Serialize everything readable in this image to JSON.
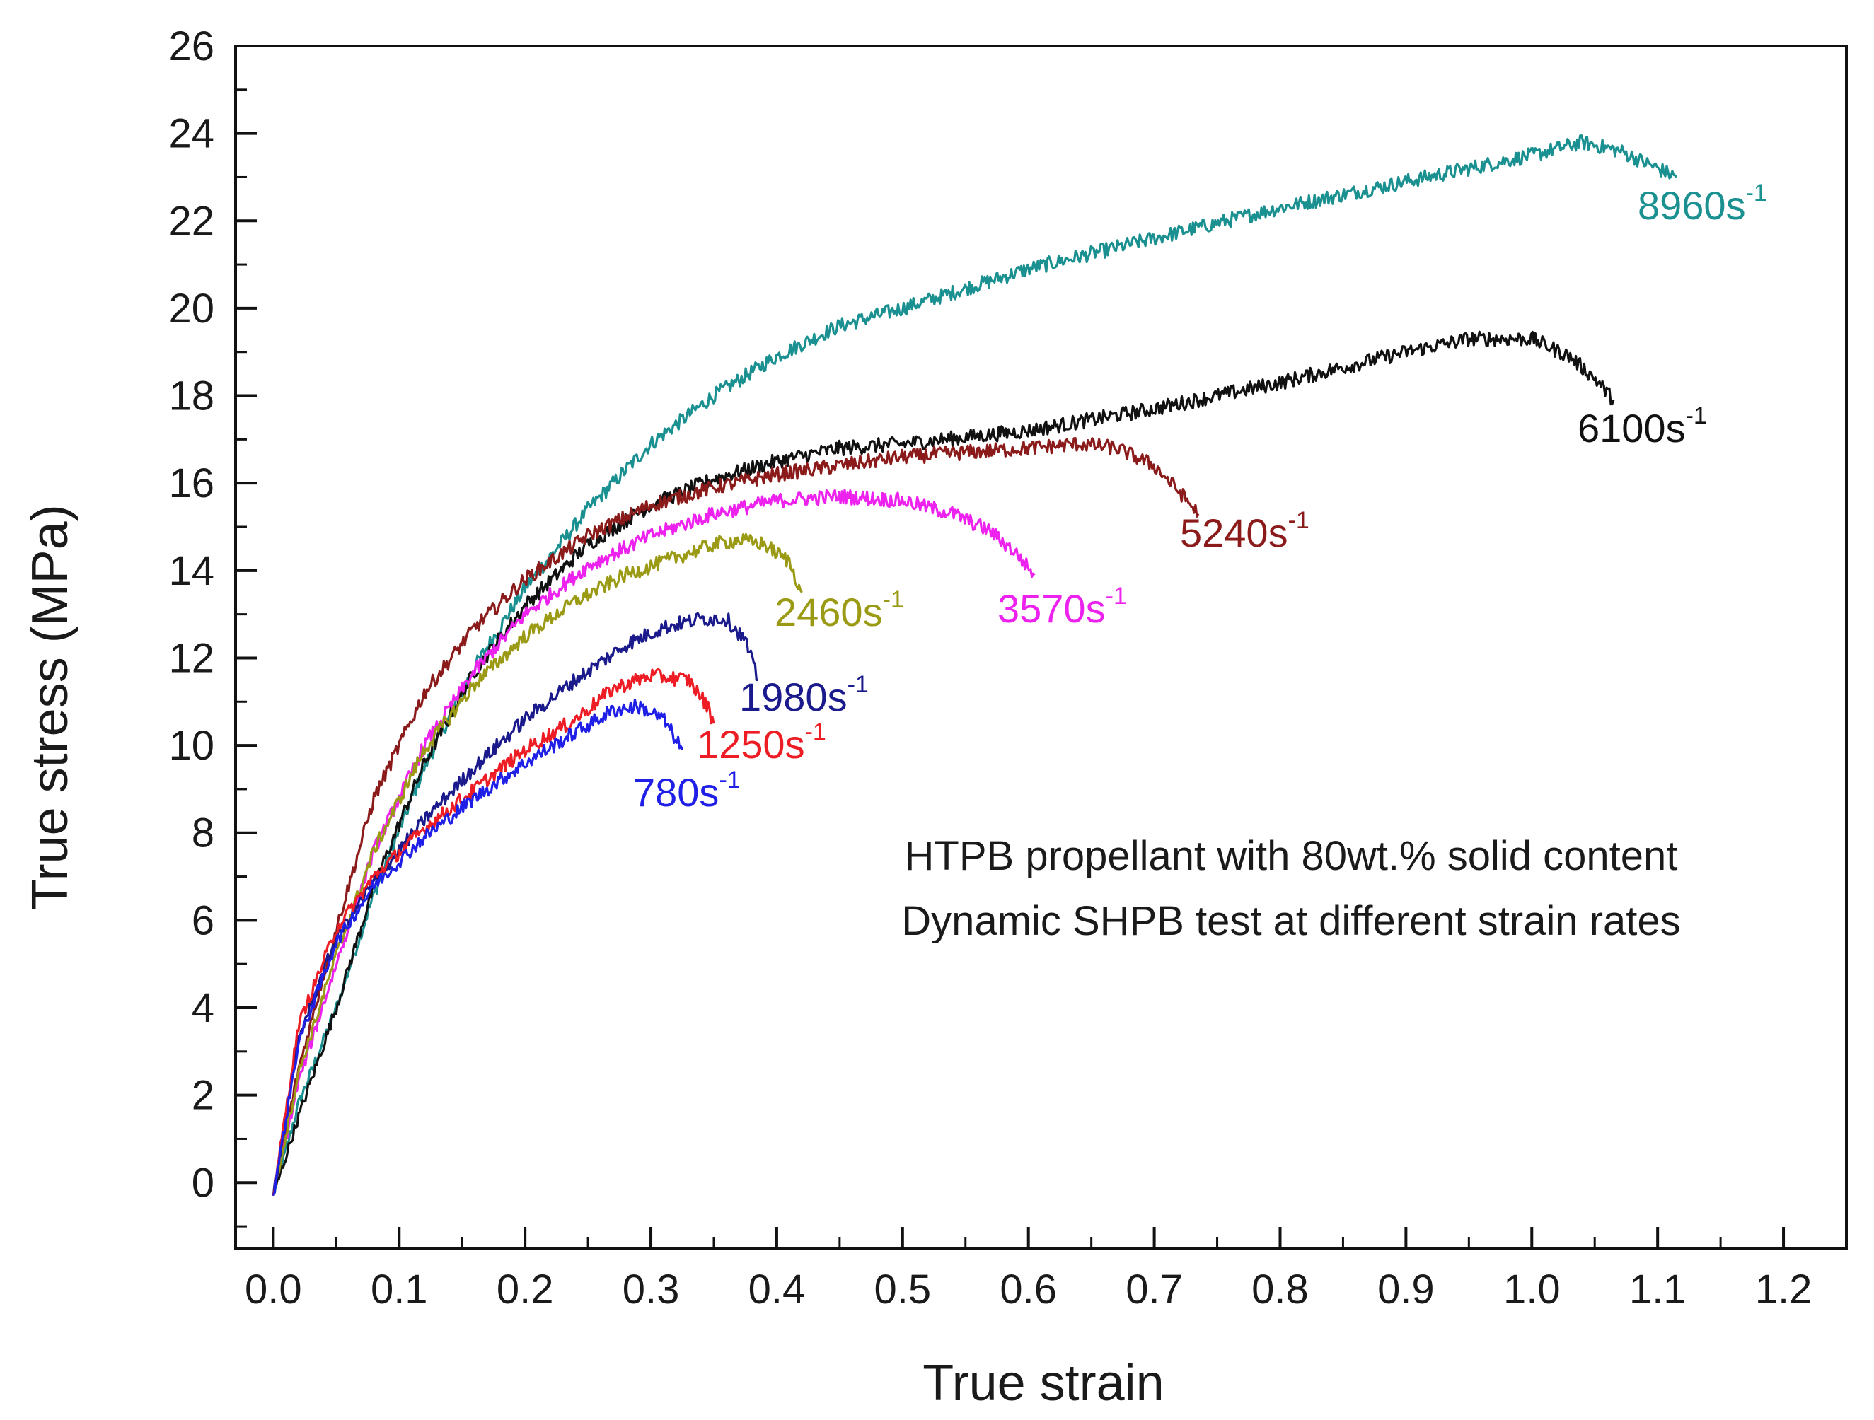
{
  "chart_data": {
    "type": "line",
    "title": "",
    "xlabel": "True strain",
    "ylabel": "True stress (MPa)",
    "xlim": [
      -0.03,
      1.25
    ],
    "ylim": [
      -1.5,
      26
    ],
    "x_ticks": [
      "0.0",
      "0.1",
      "0.2",
      "0.3",
      "0.4",
      "0.5",
      "0.6",
      "0.7",
      "0.8",
      "0.9",
      "1.0",
      "1.1",
      "1.2"
    ],
    "y_ticks": [
      "0",
      "2",
      "4",
      "6",
      "8",
      "10",
      "12",
      "14",
      "16",
      "18",
      "20",
      "22",
      "24",
      "26"
    ],
    "annotations": [
      "HTPB propellant with 80wt.% solid content",
      "Dynamic SHPB test at different strain rates"
    ],
    "series": [
      {
        "name": "780s-1",
        "rate": "780s",
        "sup": "-1",
        "color": "#1f1fe8",
        "x": [
          0.0,
          0.02,
          0.05,
          0.08,
          0.12,
          0.16,
          0.2,
          0.24,
          0.27,
          0.29,
          0.31,
          0.325
        ],
        "y": [
          -0.3,
          3.2,
          5.5,
          6.8,
          7.9,
          8.8,
          9.6,
          10.3,
          10.8,
          10.9,
          10.6,
          9.9
        ]
      },
      {
        "name": "1250s-1",
        "rate": "1250s",
        "sup": "-1",
        "color": "#ee1c24",
        "x": [
          0.0,
          0.02,
          0.05,
          0.08,
          0.12,
          0.16,
          0.2,
          0.24,
          0.27,
          0.3,
          0.33,
          0.345,
          0.35
        ],
        "y": [
          -0.3,
          3.6,
          5.8,
          7.0,
          8.1,
          9.0,
          9.9,
          10.6,
          11.3,
          11.6,
          11.5,
          10.9,
          10.5
        ]
      },
      {
        "name": "1980s-1",
        "rate": "1980s",
        "sup": "-1",
        "color": "#1a1a8c",
        "x": [
          0.0,
          0.02,
          0.05,
          0.08,
          0.12,
          0.16,
          0.2,
          0.24,
          0.28,
          0.31,
          0.34,
          0.36,
          0.375,
          0.385
        ],
        "y": [
          -0.3,
          3.3,
          5.6,
          6.9,
          8.3,
          9.5,
          10.6,
          11.5,
          12.3,
          12.7,
          12.9,
          12.9,
          12.4,
          11.5
        ]
      },
      {
        "name": "2460s-1",
        "rate": "2460s",
        "sup": "-1",
        "color": "#9a9a14",
        "x": [
          0.0,
          0.02,
          0.05,
          0.08,
          0.12,
          0.16,
          0.2,
          0.24,
          0.28,
          0.32,
          0.35,
          0.37,
          0.39,
          0.41,
          0.42
        ],
        "y": [
          -0.3,
          2.5,
          5.2,
          7.6,
          9.9,
          11.4,
          12.5,
          13.3,
          13.9,
          14.3,
          14.6,
          14.7,
          14.6,
          14.2,
          13.5
        ]
      },
      {
        "name": "3570s-1",
        "rate": "3570s",
        "sup": "-1",
        "color": "#ee22ee",
        "x": [
          0.0,
          0.02,
          0.05,
          0.08,
          0.12,
          0.16,
          0.2,
          0.25,
          0.3,
          0.35,
          0.4,
          0.45,
          0.5,
          0.54,
          0.57,
          0.59,
          0.605
        ],
        "y": [
          -0.3,
          2.3,
          5.0,
          7.6,
          10.0,
          11.7,
          13.0,
          14.1,
          14.8,
          15.3,
          15.6,
          15.7,
          15.6,
          15.3,
          14.9,
          14.4,
          13.9
        ]
      },
      {
        "name": "5240s-1",
        "rate": "5240s",
        "sup": "-1",
        "color": "#8b1a1a",
        "x": [
          0.0,
          0.02,
          0.05,
          0.08,
          0.12,
          0.16,
          0.2,
          0.25,
          0.3,
          0.35,
          0.4,
          0.45,
          0.5,
          0.55,
          0.6,
          0.64,
          0.67,
          0.7,
          0.72,
          0.735
        ],
        "y": [
          -0.3,
          2.6,
          5.8,
          8.8,
          11.2,
          12.7,
          13.8,
          14.8,
          15.5,
          15.9,
          16.2,
          16.4,
          16.6,
          16.7,
          16.8,
          16.9,
          16.8,
          16.4,
          15.8,
          15.3
        ]
      },
      {
        "name": "6100s-1",
        "rate": "6100s",
        "sup": "-1",
        "color": "#111111",
        "x": [
          0.0,
          0.02,
          0.05,
          0.08,
          0.12,
          0.16,
          0.2,
          0.25,
          0.3,
          0.35,
          0.4,
          0.45,
          0.5,
          0.6,
          0.7,
          0.8,
          0.9,
          0.95,
          1.0,
          1.03,
          1.05,
          1.065
        ],
        "y": [
          -0.3,
          1.5,
          4.0,
          6.8,
          9.6,
          11.7,
          13.2,
          14.6,
          15.5,
          16.1,
          16.5,
          16.8,
          16.9,
          17.2,
          17.7,
          18.3,
          19.0,
          19.3,
          19.3,
          18.9,
          18.4,
          17.9
        ]
      },
      {
        "name": "8960s-1",
        "rate": "8960s",
        "sup": "-1",
        "color": "#1a9090",
        "x": [
          0.0,
          0.02,
          0.05,
          0.08,
          0.12,
          0.16,
          0.2,
          0.25,
          0.3,
          0.35,
          0.4,
          0.45,
          0.5,
          0.6,
          0.7,
          0.8,
          0.9,
          1.0,
          1.04,
          1.07,
          1.1,
          1.115
        ],
        "y": [
          -0.3,
          1.8,
          4.0,
          6.6,
          9.5,
          11.8,
          13.6,
          15.4,
          16.9,
          18.0,
          18.9,
          19.6,
          20.0,
          20.9,
          21.6,
          22.3,
          22.9,
          23.5,
          23.8,
          23.6,
          23.2,
          23.0
        ]
      }
    ]
  }
}
